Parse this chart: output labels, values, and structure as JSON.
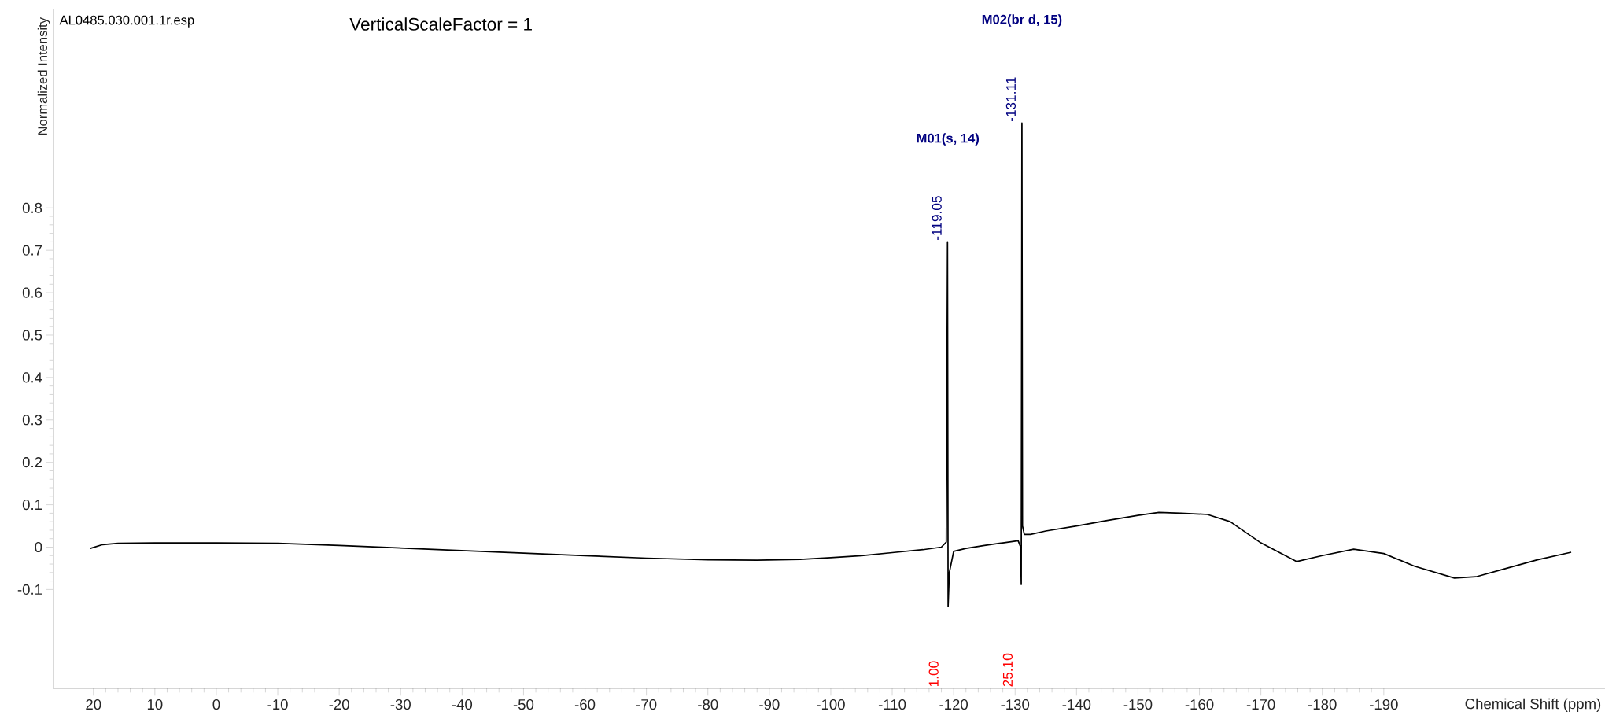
{
  "chart_data": {
    "type": "line",
    "xlabel": "Chemical Shift (ppm)",
    "ylabel": "Normalized Intensity",
    "annotations": [
      "AL0485.030.001.1r.esp",
      "VerticalScaleFactor = 1",
      "M01(s, 14)",
      "M02(br d, 15)",
      {
        "text": "-119.05",
        "x": -119.05,
        "y": 0.72
      },
      {
        "text": "-131.11",
        "x": -131.11,
        "y": 1.0
      },
      "1.00",
      "25.10"
    ],
    "xlim": [
      26.5,
      -226
    ],
    "ylim": [
      -0.333,
      1.268
    ],
    "xticks": [
      20,
      10,
      0,
      -10,
      -20,
      -30,
      -40,
      -50,
      -60,
      -70,
      -80,
      -90,
      -100,
      -110,
      -120,
      -130,
      -140,
      -150,
      -160,
      -170,
      -180,
      -190
    ],
    "yticks": [
      -0.1,
      0,
      0.1,
      0.2,
      0.3,
      0.4,
      0.5,
      0.6,
      0.7,
      0.8
    ],
    "series": [
      {
        "color": "#000000",
        "x": [
          20.5,
          18.5,
          16,
          10,
          0,
          -10,
          -20,
          -30,
          -40,
          -50,
          -60,
          -70,
          -80,
          -88,
          -95,
          -100,
          -105,
          -110,
          -115,
          -118,
          -118.8,
          -119.0,
          -119.1,
          -119.3,
          -120,
          -122,
          -125,
          -128,
          -130.5,
          -130.9,
          -131.0,
          -131.11,
          -131.2,
          -131.5,
          -132.5,
          -135,
          -140,
          -145,
          -150,
          -153.4,
          -157,
          -161.3,
          -165,
          -170,
          -175.8,
          -180,
          -185.1,
          -190,
          -195,
          -201.5,
          -205,
          -210,
          -215,
          -220.5
        ],
        "values": [
          -0.003,
          0.006,
          0.009,
          0.01,
          0.01,
          0.009,
          0.004,
          -0.002,
          -0.008,
          -0.014,
          -0.02,
          -0.026,
          -0.03,
          -0.031,
          -0.029,
          -0.025,
          -0.02,
          -0.013,
          -0.006,
          0.0,
          0.012,
          0.72,
          -0.14,
          -0.06,
          -0.01,
          -0.003,
          0.004,
          0.01,
          0.015,
          0.0,
          -0.088,
          1.0,
          0.05,
          0.03,
          0.03,
          0.038,
          0.05,
          0.063,
          0.075,
          0.082,
          0.08,
          0.077,
          0.06,
          0.01,
          -0.034,
          -0.02,
          -0.005,
          -0.015,
          -0.045,
          -0.073,
          -0.07,
          -0.05,
          -0.03,
          -0.012
        ]
      }
    ]
  }
}
